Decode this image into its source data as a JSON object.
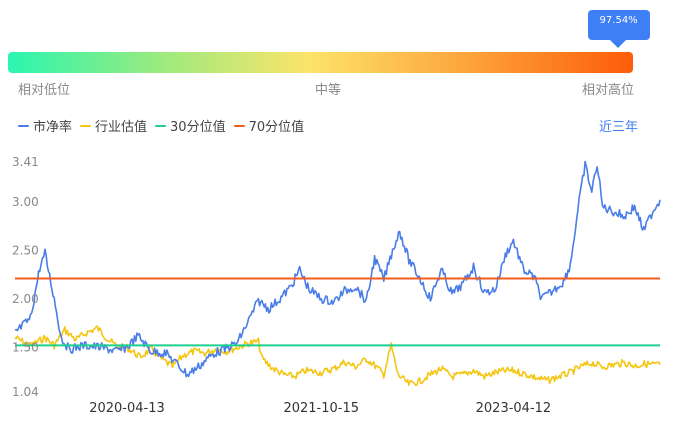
{
  "gauge": {
    "percentile_label": "97.54%",
    "percentile": 0.9754,
    "low_label": "相对低位",
    "mid_label": "中等",
    "high_label": "相对高位"
  },
  "legend": {
    "pb": "市净率",
    "industry": "行业估值",
    "p30": "30分位值",
    "p70": "70分位值"
  },
  "period": "近三年",
  "colors": {
    "pb": "#4a7de8",
    "industry": "#f4c612",
    "p30": "#1fcf8f",
    "p70": "#f25c1e"
  },
  "chart_data": {
    "type": "line",
    "x_start": "2019-06-01",
    "x_end": "2024-05-31",
    "xticks": [
      "2020-04-13",
      "2021-10-15",
      "2023-04-12"
    ],
    "yticks": [
      "3.41",
      "3.00",
      "2.50",
      "2.00",
      "1.50",
      "1.04"
    ],
    "yvalues": [
      3.41,
      3.0,
      2.5,
      2.0,
      1.5,
      1.04
    ],
    "ylim": [
      1.04,
      3.41
    ],
    "grid": false,
    "legend_position": "top-left",
    "reference_lines": [
      {
        "name": "30分位值",
        "value": 1.52
      },
      {
        "name": "70分位值",
        "value": 2.21
      }
    ],
    "series": [
      {
        "name": "市净率",
        "points": [
          [
            "2019-06-01",
            1.65
          ],
          [
            "2019-07-15",
            1.8
          ],
          [
            "2019-08-10",
            2.32
          ],
          [
            "2019-08-25",
            2.47
          ],
          [
            "2019-09-20",
            2.0
          ],
          [
            "2019-10-10",
            1.6
          ],
          [
            "2019-11-01",
            1.48
          ],
          [
            "2019-12-15",
            1.52
          ],
          [
            "2020-02-01",
            1.5
          ],
          [
            "2020-03-15",
            1.46
          ],
          [
            "2020-04-13",
            1.5
          ],
          [
            "2020-05-15",
            1.62
          ],
          [
            "2020-06-20",
            1.46
          ],
          [
            "2020-08-01",
            1.44
          ],
          [
            "2020-09-01",
            1.33
          ],
          [
            "2020-10-01",
            1.22
          ],
          [
            "2020-11-01",
            1.3
          ],
          [
            "2020-12-15",
            1.44
          ],
          [
            "2021-01-15",
            1.48
          ],
          [
            "2021-02-20",
            1.55
          ],
          [
            "2021-03-20",
            1.75
          ],
          [
            "2021-04-20",
            1.98
          ],
          [
            "2021-05-20",
            1.9
          ],
          [
            "2021-06-20",
            2.0
          ],
          [
            "2021-07-20",
            2.12
          ],
          [
            "2021-08-15",
            2.3
          ],
          [
            "2021-09-10",
            2.1
          ],
          [
            "2021-10-15",
            2.0
          ],
          [
            "2021-11-20",
            1.97
          ],
          [
            "2021-12-20",
            2.08
          ],
          [
            "2022-01-20",
            2.13
          ],
          [
            "2022-02-20",
            1.97
          ],
          [
            "2022-03-15",
            2.42
          ],
          [
            "2022-04-10",
            2.2
          ],
          [
            "2022-05-05",
            2.5
          ],
          [
            "2022-05-25",
            2.7
          ],
          [
            "2022-06-20",
            2.4
          ],
          [
            "2022-07-20",
            2.22
          ],
          [
            "2022-08-20",
            2.0
          ],
          [
            "2022-09-20",
            2.3
          ],
          [
            "2022-10-20",
            2.05
          ],
          [
            "2022-11-20",
            2.15
          ],
          [
            "2022-12-20",
            2.33
          ],
          [
            "2023-01-20",
            2.06
          ],
          [
            "2023-02-20",
            2.1
          ],
          [
            "2023-03-20",
            2.45
          ],
          [
            "2023-04-12",
            2.6
          ],
          [
            "2023-05-10",
            2.3
          ],
          [
            "2023-06-10",
            2.22
          ],
          [
            "2023-07-01",
            2.0
          ],
          [
            "2023-08-01",
            2.08
          ],
          [
            "2023-09-01",
            2.18
          ],
          [
            "2023-09-20",
            2.35
          ],
          [
            "2023-10-15",
            3.0
          ],
          [
            "2023-11-01",
            3.38
          ],
          [
            "2023-11-20",
            3.1
          ],
          [
            "2023-12-05",
            3.4
          ],
          [
            "2023-12-20",
            2.95
          ],
          [
            "2024-01-20",
            2.9
          ],
          [
            "2024-02-20",
            2.85
          ],
          [
            "2024-03-20",
            2.95
          ],
          [
            "2024-04-15",
            2.7
          ],
          [
            "2024-05-10",
            2.9
          ],
          [
            "2024-05-31",
            3.02
          ]
        ]
      },
      {
        "name": "行业估值",
        "points": [
          [
            "2019-06-01",
            1.6
          ],
          [
            "2019-07-15",
            1.52
          ],
          [
            "2019-08-25",
            1.6
          ],
          [
            "2019-09-20",
            1.52
          ],
          [
            "2019-10-20",
            1.68
          ],
          [
            "2019-11-20",
            1.58
          ],
          [
            "2019-12-20",
            1.65
          ],
          [
            "2020-01-20",
            1.7
          ],
          [
            "2020-02-20",
            1.58
          ],
          [
            "2020-03-20",
            1.5
          ],
          [
            "2020-04-13",
            1.5
          ],
          [
            "2020-05-20",
            1.4
          ],
          [
            "2020-06-20",
            1.48
          ],
          [
            "2020-07-20",
            1.38
          ],
          [
            "2020-08-20",
            1.3
          ],
          [
            "2020-09-20",
            1.42
          ],
          [
            "2020-10-20",
            1.46
          ],
          [
            "2020-11-20",
            1.44
          ],
          [
            "2020-12-20",
            1.48
          ],
          [
            "2021-01-20",
            1.46
          ],
          [
            "2021-02-20",
            1.5
          ],
          [
            "2021-03-20",
            1.54
          ],
          [
            "2021-04-20",
            1.56
          ],
          [
            "2021-05-01",
            1.38
          ],
          [
            "2021-06-01",
            1.28
          ],
          [
            "2021-07-01",
            1.22
          ],
          [
            "2021-08-01",
            1.2
          ],
          [
            "2021-09-01",
            1.26
          ],
          [
            "2021-10-15",
            1.24
          ],
          [
            "2021-11-20",
            1.28
          ],
          [
            "2021-12-20",
            1.35
          ],
          [
            "2022-01-20",
            1.3
          ],
          [
            "2022-02-20",
            1.38
          ],
          [
            "2022-03-20",
            1.3
          ],
          [
            "2022-04-10",
            1.22
          ],
          [
            "2022-05-01",
            1.52
          ],
          [
            "2022-05-20",
            1.22
          ],
          [
            "2022-06-20",
            1.12
          ],
          [
            "2022-07-20",
            1.15
          ],
          [
            "2022-08-20",
            1.22
          ],
          [
            "2022-09-20",
            1.28
          ],
          [
            "2022-10-20",
            1.2
          ],
          [
            "2022-11-20",
            1.22
          ],
          [
            "2022-12-20",
            1.26
          ],
          [
            "2023-01-20",
            1.2
          ],
          [
            "2023-02-20",
            1.24
          ],
          [
            "2023-03-20",
            1.26
          ],
          [
            "2023-04-12",
            1.26
          ],
          [
            "2023-05-20",
            1.22
          ],
          [
            "2023-06-20",
            1.18
          ],
          [
            "2023-07-20",
            1.16
          ],
          [
            "2023-08-20",
            1.2
          ],
          [
            "2023-09-20",
            1.24
          ],
          [
            "2023-10-20",
            1.3
          ],
          [
            "2023-11-20",
            1.34
          ],
          [
            "2023-12-20",
            1.3
          ],
          [
            "2024-01-20",
            1.32
          ],
          [
            "2024-02-20",
            1.34
          ],
          [
            "2024-03-20",
            1.31
          ],
          [
            "2024-04-20",
            1.33
          ],
          [
            "2024-05-31",
            1.32
          ]
        ]
      }
    ]
  }
}
